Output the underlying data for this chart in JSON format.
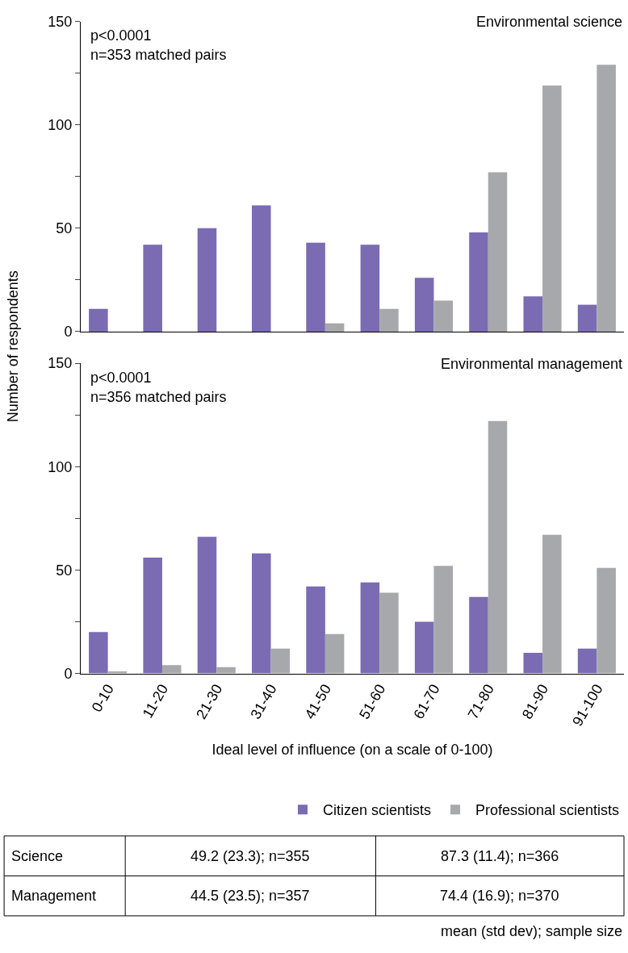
{
  "chart_data": [
    {
      "type": "bar",
      "title": "Environmental science",
      "ylabel": "Number of respondents",
      "categories": [
        null,
        null,
        null,
        null,
        null,
        null,
        null,
        null,
        null,
        null
      ],
      "series": [
        {
          "color": "#7b6bb3",
          "values": [
            11,
            42,
            50,
            61,
            43,
            42,
            26,
            48,
            17,
            13
          ]
        },
        {
          "color": "#a7a8ab",
          "values": [
            0,
            0,
            0,
            0,
            4,
            11,
            15,
            77,
            119,
            129
          ]
        }
      ],
      "ylim": [
        0,
        150
      ],
      "yticks": [
        0,
        {
          "value": 25,
          "label": null
        },
        50,
        {
          "value": 75,
          "label": null
        },
        100,
        {
          "value": 125,
          "label": null
        },
        150
      ],
      "tick_labels": "y",
      "annotations": [
        "p<0.0001",
        "n=353 matched pairs"
      ]
    },
    {
      "type": "bar",
      "title": "Environmental management",
      "xlabel": "Ideal level of influence (on a scale of 0-100)",
      "categories": [
        "0-10",
        "11-20",
        "21-30",
        "31-40",
        "41-50",
        "51-60",
        "61-70",
        "71-80",
        "81-90",
        "91-100"
      ],
      "series": [
        {
          "name": "Citizen scientists",
          "color": "#7b6bb3",
          "values": [
            20,
            56,
            66,
            58,
            42,
            44,
            25,
            37,
            10,
            12
          ]
        },
        {
          "name": "Professional scientists",
          "color": "#a7a8ab",
          "values": [
            1,
            4,
            3,
            12,
            19,
            39,
            52,
            122,
            67,
            51
          ]
        }
      ],
      "ylim": [
        0,
        150
      ],
      "yticks": [
        0,
        {
          "value": 25,
          "label": null
        },
        50,
        {
          "value": 75,
          "label": null
        },
        100,
        {
          "value": 125,
          "label": null
        },
        150
      ],
      "legend": "bottom",
      "annotations": [
        "p<0.0001",
        "n=356 matched pairs",
        "Science",
        "49.2 (23.3); n=355",
        "87.3 (11.4); n=366",
        "Management",
        "44.5 (23.5); n=357",
        "74.4 (16.9); n=370",
        "mean (std dev); sample size"
      ]
    }
  ]
}
